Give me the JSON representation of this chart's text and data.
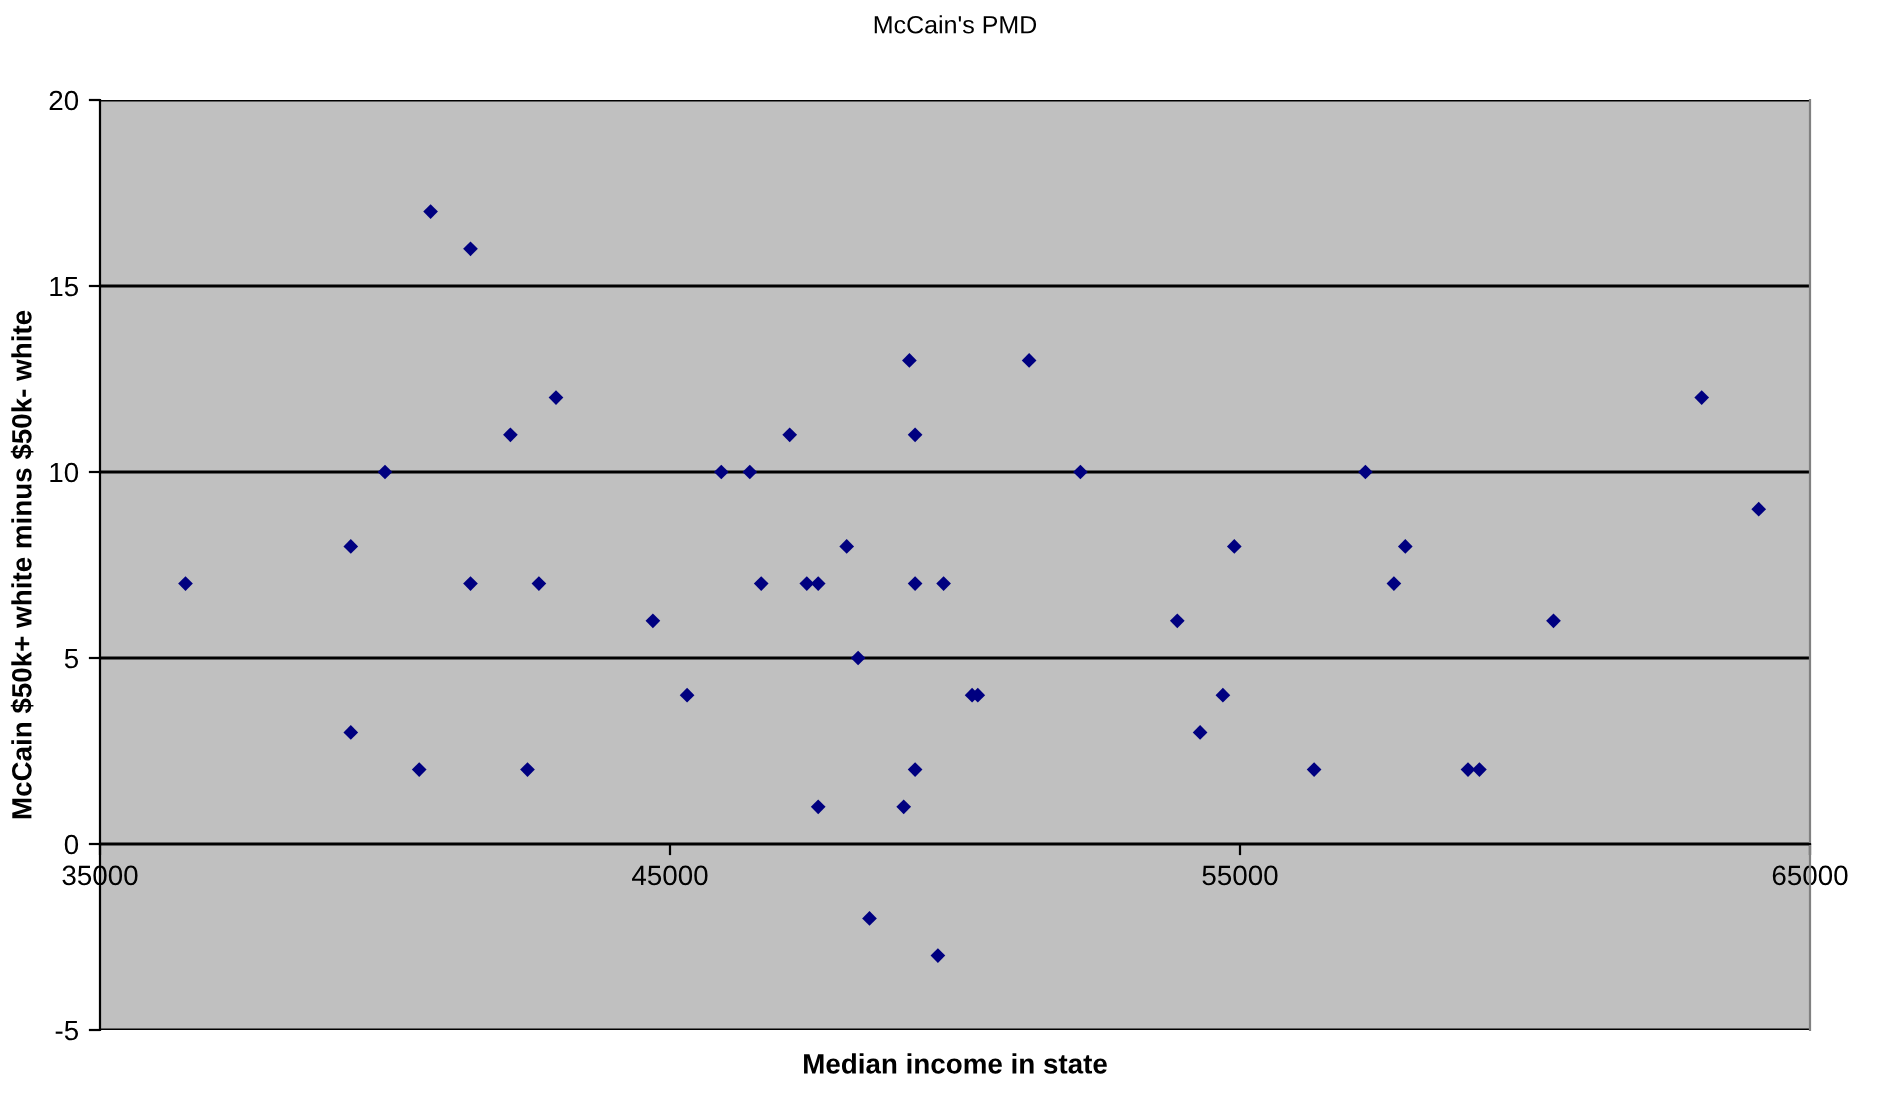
{
  "chart_data": {
    "type": "scatter",
    "title": "McCain's PMD",
    "xlabel": "Median income in state",
    "ylabel": "McCain $50k+ white minus $50k- white",
    "x": [
      36500,
      39400,
      39400,
      40000,
      40600,
      40800,
      41500,
      41500,
      42200,
      42500,
      42700,
      43000,
      44700,
      45300,
      45900,
      46400,
      46600,
      47100,
      47400,
      47600,
      47600,
      48100,
      48300,
      48500,
      49200,
      49100,
      49300,
      49300,
      49300,
      49700,
      49800,
      50300,
      50400,
      51300,
      52200,
      53900,
      54300,
      54700,
      54900,
      56300,
      57200,
      57700,
      57900,
      59000,
      59200,
      60500,
      63100,
      64100
    ],
    "series": [
      {
        "color": "#000080",
        "values": [
          7,
          8,
          3,
          10,
          2,
          17,
          16,
          7,
          11,
          2,
          7,
          12,
          6,
          4,
          10,
          10,
          7,
          11,
          7,
          7,
          1,
          8,
          5,
          -2,
          13,
          1,
          11,
          7,
          2,
          -3,
          7,
          4,
          4,
          13,
          10,
          6,
          3,
          4,
          8,
          2,
          10,
          7,
          8,
          2,
          2,
          6,
          12,
          9
        ]
      }
    ],
    "xlim": [
      35000,
      65000
    ],
    "xticks": [
      35000,
      45000,
      55000,
      65000
    ],
    "ylim": [
      -5,
      20
    ],
    "yticks": [
      -5,
      0,
      5,
      10,
      15,
      20
    ],
    "grid": "y",
    "marker": "diamond",
    "legend": false
  }
}
